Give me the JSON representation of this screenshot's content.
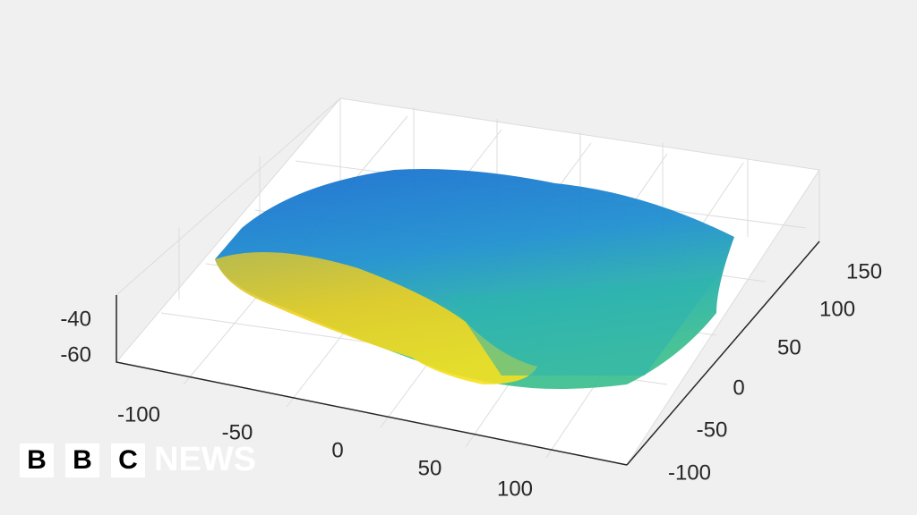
{
  "axes": {
    "z_ticks": [
      -40,
      -60
    ],
    "x_ticks": [
      -100,
      -50,
      0,
      50,
      100
    ],
    "y_ticks": [
      150,
      100,
      50,
      0,
      -50,
      -100
    ]
  },
  "logo": {
    "letters": [
      "B",
      "B",
      "C"
    ],
    "word": "NEWS"
  }
}
